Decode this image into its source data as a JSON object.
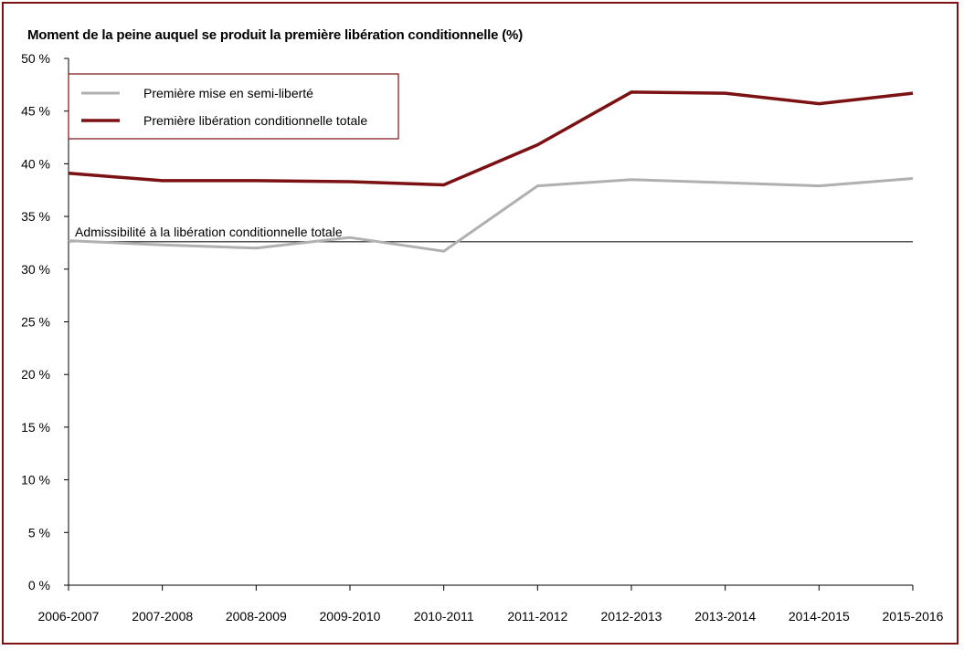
{
  "title": "Moment de la peine auquel se produit la première libération conditionnelle (%)",
  "colors": {
    "frame": "#7b1113",
    "semi_liberte": "#b0b0b0",
    "totale": "#7b1113",
    "reference": "#555555"
  },
  "chart_data": {
    "type": "line",
    "title": "Moment de la peine auquel se produit la première libération conditionnelle (%)",
    "xlabel": "",
    "ylabel": "",
    "ylim": [
      0,
      50
    ],
    "yticks": [
      0,
      5,
      10,
      15,
      20,
      25,
      30,
      35,
      40,
      45,
      50
    ],
    "ytick_labels": [
      "0 %",
      "5 %",
      "10 %",
      "15 %",
      "20 %",
      "25 %",
      "30 %",
      "35 %",
      "40 %",
      "45 %",
      "50 %"
    ],
    "categories": [
      "2006-2007",
      "2007-2008",
      "2008-2009",
      "2009-2010",
      "2010-2011",
      "2011-2012",
      "2012-2013",
      "2013-2014",
      "2014-2015",
      "2015-2016"
    ],
    "series": [
      {
        "name": "Première mise en semi-liberté",
        "color": "#b0b0b0",
        "values": [
          32.7,
          32.3,
          32.0,
          33.0,
          31.7,
          37.9,
          38.5,
          38.2,
          37.9,
          38.6
        ]
      },
      {
        "name": "Première libération conditionnelle totale",
        "color": "#7b1113",
        "values": [
          39.1,
          38.4,
          38.4,
          38.3,
          38.0,
          41.8,
          46.8,
          46.7,
          45.7,
          46.7
        ]
      }
    ],
    "reference_line": {
      "label": "Admissibilité à la libération conditionnelle totale",
      "value": 32.6
    },
    "legend_position": "top-left",
    "grid": false
  }
}
